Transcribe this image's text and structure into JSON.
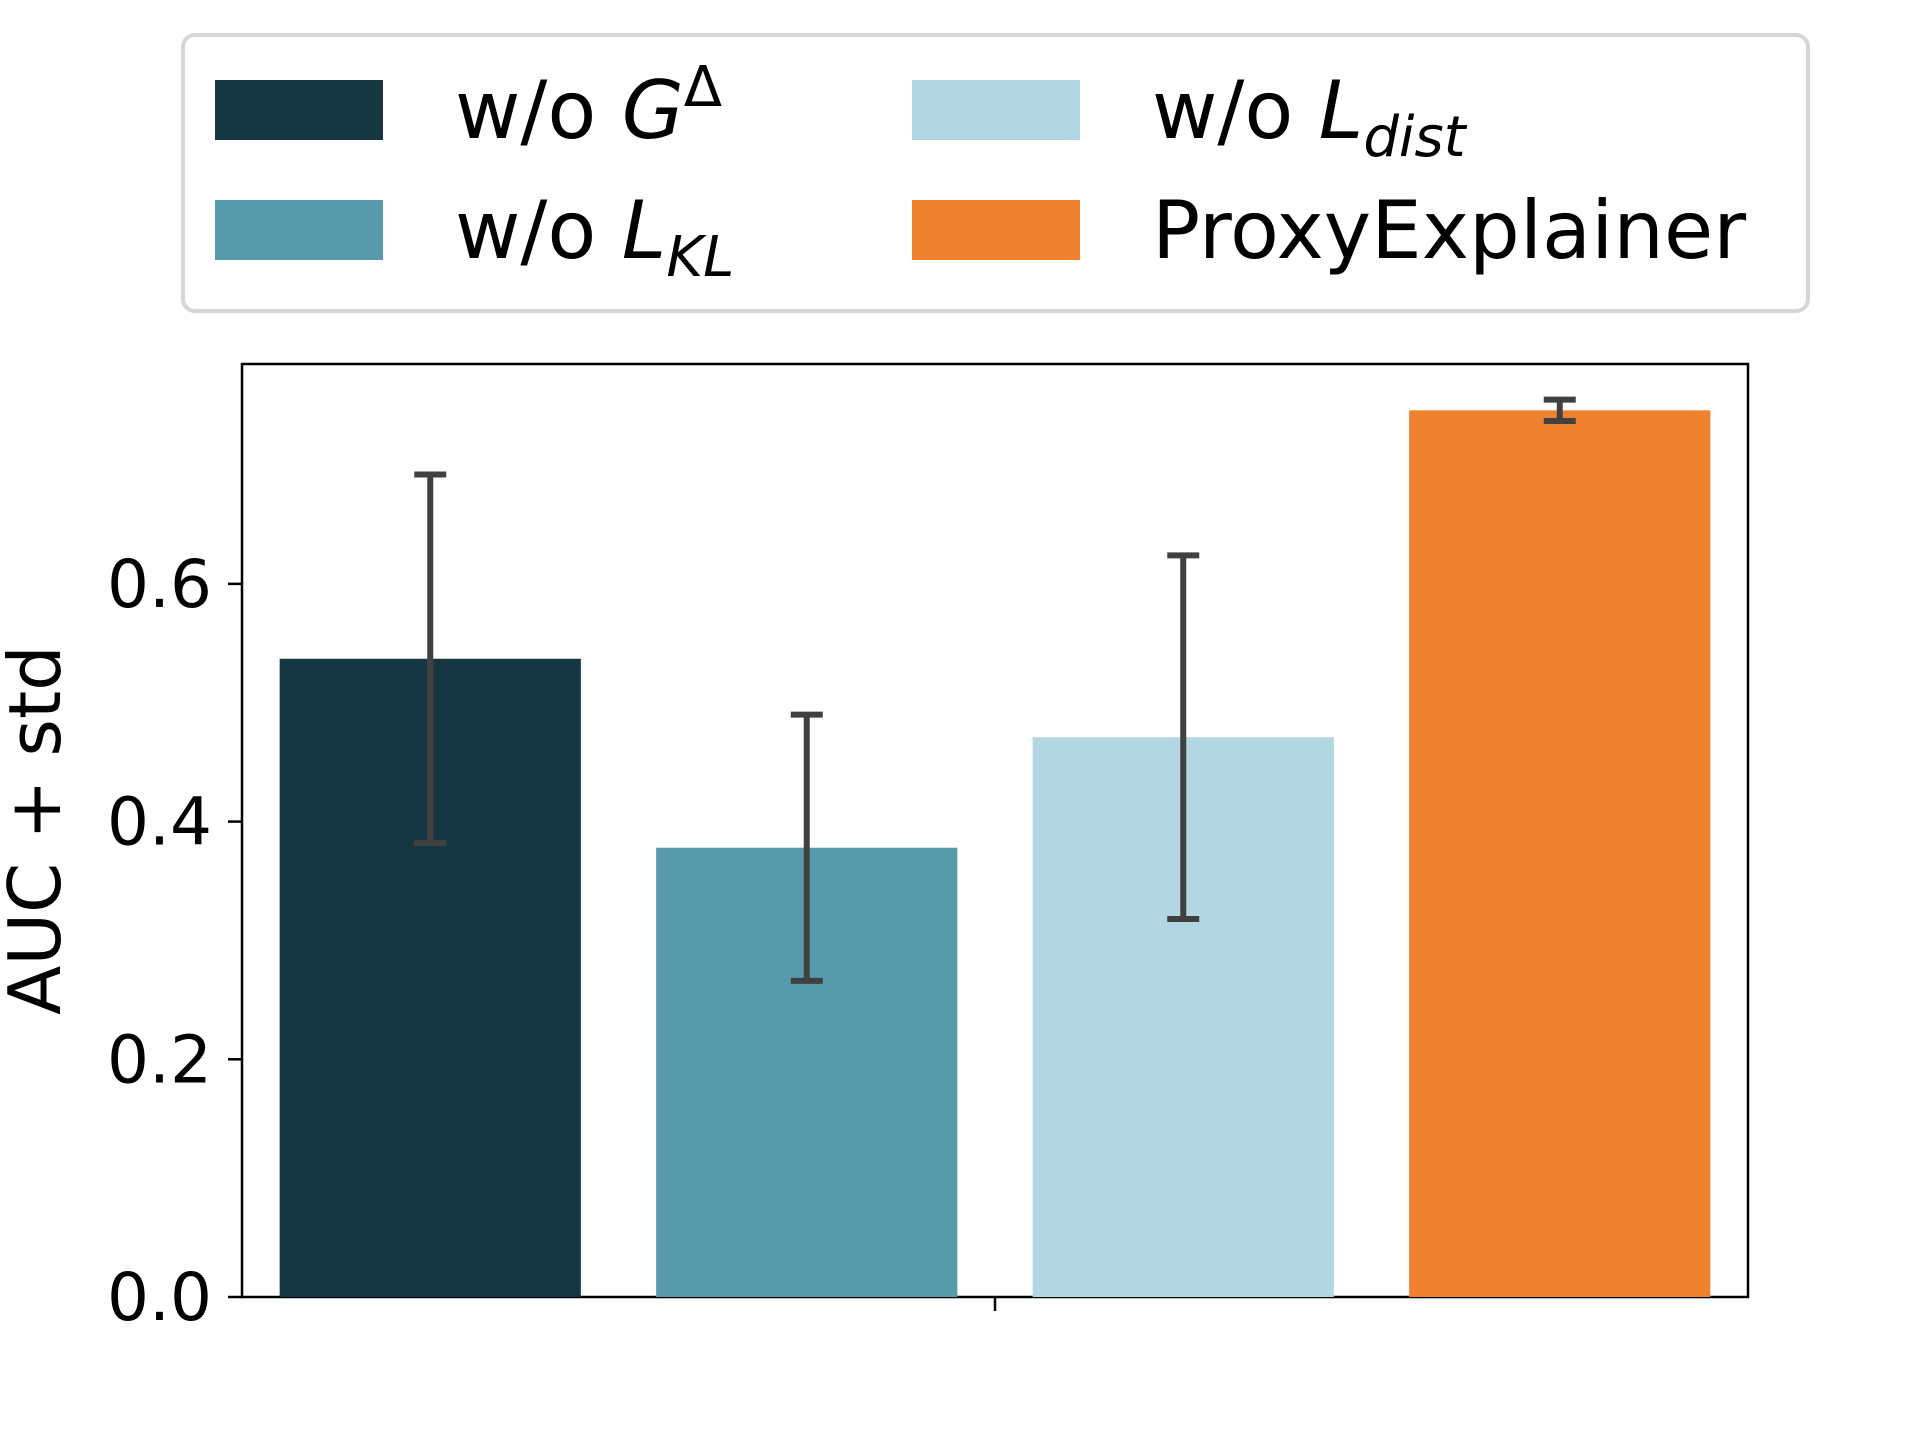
{
  "chart_data": {
    "type": "bar",
    "ylabel": "AUC + std",
    "xlabel": "",
    "ylim": [
      0,
      0.785
    ],
    "yticks": [
      0.0,
      0.2,
      0.4,
      0.6
    ],
    "ytick_labels": [
      "0.0",
      "0.2",
      "0.4",
      "0.6"
    ],
    "series": [
      {
        "name": "w/o G^Δ",
        "label": {
          "prefix": "w/o ",
          "main": "G",
          "sup": "Δ",
          "sub": ""
        },
        "color": "#163641",
        "value": 0.537,
        "std": 0.155
      },
      {
        "name": "w/o L_KL",
        "label": {
          "prefix": "w/o ",
          "main": "L",
          "sup": "",
          "sub": "KL"
        },
        "color": "#569aab",
        "value": 0.378,
        "std": 0.112
      },
      {
        "name": "w/o L_dist",
        "label": {
          "prefix": "w/o ",
          "main": "L",
          "sup": "",
          "sub": "dist"
        },
        "color": "#b2d7e2",
        "value": 0.471,
        "std": 0.153
      },
      {
        "name": "ProxyExplainer",
        "label": {
          "prefix": "ProxyExplainer",
          "main": "",
          "sup": "",
          "sub": ""
        },
        "color": "#ef812f",
        "value": 0.746,
        "std": 0.009
      }
    ],
    "errorbar_color": "#404040",
    "legend_position": "top-center"
  }
}
